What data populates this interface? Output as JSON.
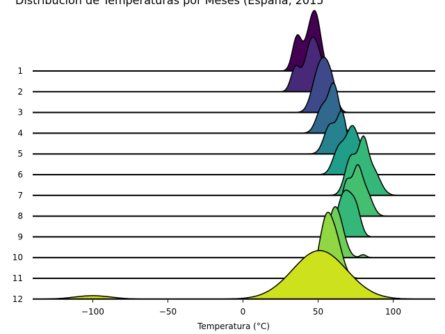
{
  "chart_data": {
    "type": "ridgeline",
    "title": "Distribución de Temperaturas por Meses (España, 2015",
    "xlabel": "Temperatura (°C)",
    "ylabel": "",
    "xlim": [
      -140,
      128
    ],
    "xticks": [
      -100,
      -50,
      0,
      50,
      100
    ],
    "grid": false,
    "series": [
      {
        "name": "1",
        "color": "#440154",
        "components": [
          [
            36,
            3,
            0.7
          ],
          [
            46,
            4,
            1.0
          ],
          [
            50,
            3,
            0.45
          ]
        ]
      },
      {
        "name": "2",
        "color": "#482878",
        "components": [
          [
            35,
            3,
            0.5
          ],
          [
            45,
            4,
            0.9
          ],
          [
            51,
            4,
            0.55
          ]
        ]
      },
      {
        "name": "3",
        "color": "#3e4989",
        "components": [
          [
            49,
            4,
            0.6
          ],
          [
            55,
            4,
            0.85
          ],
          [
            60,
            3,
            0.3
          ]
        ]
      },
      {
        "name": "4",
        "color": "#31688e",
        "components": [
          [
            53,
            4,
            0.55
          ],
          [
            60,
            3,
            0.8
          ],
          [
            64,
            3,
            0.3
          ]
        ]
      },
      {
        "name": "5",
        "color": "#26828e",
        "components": [
          [
            58,
            4,
            0.6
          ],
          [
            66,
            3,
            0.8
          ]
        ]
      },
      {
        "name": "6",
        "color": "#1f9e89",
        "components": [
          [
            64,
            4,
            0.55
          ],
          [
            73,
            4,
            0.95
          ],
          [
            80,
            3,
            0.3
          ]
        ]
      },
      {
        "name": "7",
        "color": "#35b779",
        "components": [
          [
            72,
            4,
            0.8
          ],
          [
            80,
            3,
            0.85
          ],
          [
            86,
            5,
            0.55
          ]
        ]
      },
      {
        "name": "8",
        "color": "#44bf70",
        "components": [
          [
            69,
            3,
            0.7
          ],
          [
            76,
            3,
            0.85
          ],
          [
            82,
            4,
            0.5
          ]
        ]
      },
      {
        "name": "9",
        "color": "#35b779",
        "components": [
          [
            66,
            4,
            0.7
          ],
          [
            72,
            4,
            0.55
          ],
          [
            76,
            3,
            0.3
          ]
        ]
      },
      {
        "name": "10",
        "color": "#6ece58",
        "components": [
          [
            60,
            4,
            0.8
          ],
          [
            65,
            4,
            0.45
          ],
          [
            80,
            2,
            0.06
          ]
        ]
      },
      {
        "name": "11",
        "color": "#90d743",
        "components": [
          [
            54,
            4,
            0.55
          ],
          [
            58,
            5,
            0.9
          ],
          [
            64,
            4,
            0.3
          ]
        ]
      },
      {
        "name": "12",
        "color": "#cde11d",
        "components": [
          [
            51,
            18,
            1.0
          ],
          [
            -100,
            12,
            0.07
          ]
        ]
      }
    ]
  }
}
